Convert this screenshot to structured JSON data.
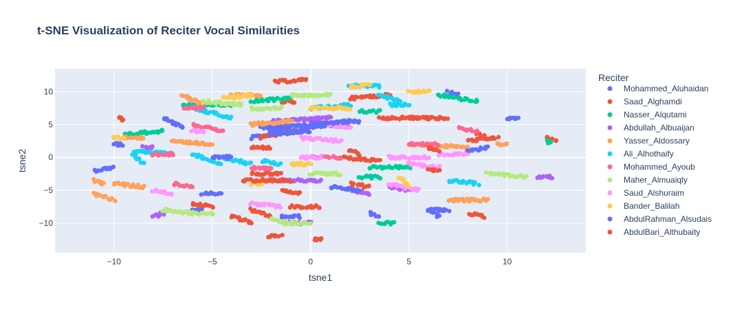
{
  "chart_data": {
    "type": "scatter",
    "title": "t-SNE Visualization of Reciter Vocal Similarities",
    "xlabel": "tsne1",
    "ylabel": "tsne2",
    "xlim": [
      -13,
      14
    ],
    "ylim": [
      -14.5,
      13.5
    ],
    "x_ticks": [
      -10,
      -5,
      0,
      5,
      10
    ],
    "y_ticks": [
      -10,
      -5,
      0,
      5,
      10
    ],
    "x_tick_labels": [
      "−10",
      "−5",
      "0",
      "5",
      "10"
    ],
    "y_tick_labels": [
      "−10",
      "−5",
      "0",
      "5",
      "10"
    ],
    "grid": true,
    "plot_background": "#E5ECF6",
    "legend": {
      "title": "Reciter",
      "placement": "right"
    },
    "series": [
      {
        "name": "Mohammed_Aluhaidan",
        "color": "#636EFA",
        "clusters": [
          [
            -11,
            -2,
            -10,
            -1.5
          ],
          [
            -7.5,
            6,
            -6.5,
            4.5
          ],
          [
            -3,
            3,
            1,
            5
          ],
          [
            -2.5,
            4.5,
            2.5,
            5.5
          ],
          [
            -1.5,
            -9,
            -0.5,
            -9
          ],
          [
            0,
            5.5,
            2,
            4.5
          ],
          [
            3,
            -8.5,
            3.5,
            -9
          ],
          [
            6,
            -8,
            6.5,
            -9
          ],
          [
            7,
            10,
            7.5,
            9.5
          ],
          [
            10,
            6,
            10.5,
            6
          ],
          [
            -6,
            -8,
            -5.5,
            -8
          ]
        ]
      },
      {
        "name": "Saad_Alghamdi",
        "color": "#EF553B",
        "clusters": [
          [
            -2.5,
            3,
            -1,
            4
          ],
          [
            -1.8,
            11.5,
            -0.2,
            11.8
          ],
          [
            -1.5,
            8.5,
            -0.8,
            8.5
          ],
          [
            2,
            9,
            4,
            9.5
          ],
          [
            3.5,
            6,
            6,
            6
          ],
          [
            -9.7,
            6,
            -9.6,
            5.6
          ],
          [
            -3,
            -2.5,
            -1.5,
            -2.5
          ],
          [
            -3,
            1.5,
            -2,
            1.5
          ],
          [
            8.5,
            3.5,
            9,
            3
          ],
          [
            8,
            2.5,
            9.5,
            3
          ],
          [
            -3,
            -8,
            -2,
            -9
          ],
          [
            1.5,
            0,
            3.5,
            -0.5
          ],
          [
            12,
            3,
            12.5,
            2.5
          ],
          [
            8,
            -8.5,
            8.8,
            -9
          ]
        ]
      },
      {
        "name": "Nasser_Alqutami",
        "color": "#00CC96",
        "clusters": [
          [
            -9.5,
            3.5,
            -7.5,
            4
          ],
          [
            -6.5,
            8,
            -4,
            8
          ],
          [
            2.5,
            7,
            3.5,
            7
          ],
          [
            3,
            -1.5,
            5,
            -1.5
          ],
          [
            6.5,
            9.5,
            8.5,
            8.5
          ],
          [
            12,
            2.5,
            12.2,
            2.2
          ],
          [
            2.5,
            -3,
            3.5,
            -3
          ],
          [
            3.5,
            -10,
            4.2,
            -10
          ],
          [
            -3,
            8.5,
            -1,
            9
          ]
        ]
      },
      {
        "name": "Abdullah_Albuaijan",
        "color": "#AB63FA",
        "clusters": [
          [
            -8,
            -9,
            -7.5,
            -8.5
          ],
          [
            -2,
            5.5,
            1,
            6
          ],
          [
            2,
            -5,
            3,
            -5.5
          ],
          [
            11.5,
            -3,
            12.3,
            -3
          ],
          [
            -1.5,
            -3.5,
            0.5,
            -3.5
          ],
          [
            -1,
            -10,
            0,
            -10
          ],
          [
            4,
            -4.5,
            5,
            -5
          ],
          [
            -8.5,
            1.5,
            -8,
            1.5
          ]
        ]
      },
      {
        "name": "Yasser_Aldossary",
        "color": "#FFA15A",
        "clusters": [
          [
            -11,
            -3.5,
            -10.5,
            -4
          ],
          [
            -10,
            -4,
            -8.5,
            -4.5
          ],
          [
            -11,
            -5.5,
            -10,
            -6.5
          ],
          [
            -6.5,
            9.5,
            -5.5,
            8
          ],
          [
            -3,
            5,
            -1,
            5.5
          ],
          [
            7,
            -6.5,
            9,
            -6.5
          ],
          [
            9.5,
            2,
            10,
            2
          ],
          [
            -7,
            2.5,
            -5,
            2
          ],
          [
            5,
            2,
            8,
            1.5
          ],
          [
            -4,
            9.5,
            -2.5,
            9.5
          ],
          [
            -9.5,
            3,
            -8.5,
            3
          ]
        ]
      },
      {
        "name": "Ali_Alhothaify",
        "color": "#19D3F3",
        "clusters": [
          [
            -9,
            1,
            -7,
            0.5
          ],
          [
            -6,
            7.5,
            -4,
            6
          ],
          [
            -6,
            0.5,
            -4.5,
            -1
          ],
          [
            -4.5,
            0,
            -3,
            -1
          ],
          [
            0,
            7.5,
            2,
            8
          ],
          [
            2,
            11,
            3.5,
            10.8
          ],
          [
            3.5,
            9.5,
            4.5,
            8.5
          ],
          [
            4,
            8,
            5,
            8
          ],
          [
            7,
            -3.5,
            8.5,
            -4
          ],
          [
            -9,
            0.5,
            -8.5,
            -1
          ],
          [
            -2.5,
            -0.5,
            -1.5,
            -1
          ]
        ]
      },
      {
        "name": "Mohammed_Ayoub",
        "color": "#FF6692",
        "clusters": [
          [
            -8,
            0.5,
            -7,
            0.5
          ],
          [
            -6,
            5,
            -4.5,
            4
          ],
          [
            -3,
            -1.5,
            -2,
            -1.8
          ],
          [
            0,
            0,
            1.5,
            0
          ],
          [
            5,
            2,
            6.5,
            2
          ],
          [
            7.5,
            4.5,
            8.5,
            4
          ],
          [
            -7,
            -4,
            -6,
            -4.5
          ],
          [
            -2.5,
            -3.5,
            -1.5,
            -3.5
          ],
          [
            -6.5,
            7.5,
            -5.5,
            7.5
          ]
        ]
      },
      {
        "name": "Maher_Almuaiqly",
        "color": "#B6E880",
        "clusters": [
          [
            -7.5,
            -8,
            -6,
            -8.5
          ],
          [
            -5.5,
            8.5,
            -3.5,
            8
          ],
          [
            -3,
            7.5,
            -1.5,
            7.5
          ],
          [
            -1.5,
            -10,
            0,
            -10
          ],
          [
            9,
            -2.5,
            11,
            -3
          ],
          [
            -1,
            9.5,
            1,
            9.5
          ],
          [
            0,
            -2.5,
            1.5,
            -2.5
          ],
          [
            -6,
            -8.5,
            -5,
            -8.5
          ],
          [
            -2,
            -9.5,
            -1,
            -10
          ]
        ]
      },
      {
        "name": "Saud_Alshuraim",
        "color": "#FF97FF",
        "clusters": [
          [
            -8,
            -5,
            -7,
            -5.5
          ],
          [
            -3,
            -7,
            -1.5,
            -7.5
          ],
          [
            -0.5,
            3,
            1.5,
            2.5
          ],
          [
            1,
            5,
            2,
            4.5
          ],
          [
            4,
            -4,
            5.5,
            -5
          ],
          [
            6.5,
            0.5,
            8,
            0.5
          ],
          [
            -0.5,
            0,
            0.5,
            0
          ],
          [
            4,
            0,
            6,
            0
          ],
          [
            -6,
            4,
            -5.5,
            4
          ],
          [
            5,
            -1,
            6.5,
            -1.5
          ]
        ]
      },
      {
        "name": "Bander_Balilah",
        "color": "#FECB52",
        "clusters": [
          [
            -10,
            3,
            -9.5,
            3
          ],
          [
            -4.5,
            9,
            -3,
            9.5
          ],
          [
            0,
            7.5,
            2,
            7.5
          ],
          [
            2,
            10.8,
            3,
            11
          ],
          [
            5,
            10,
            6,
            10
          ],
          [
            4.5,
            -3,
            5,
            -4.5
          ],
          [
            -1,
            -1,
            0,
            -1
          ],
          [
            -3,
            -4,
            -2.5,
            -4
          ]
        ]
      },
      {
        "name": "AbdulRahman_Alsudais",
        "color": "#636EFA",
        "clusters": [
          [
            -2,
            3.5,
            0,
            4
          ],
          [
            0,
            5,
            2,
            5.5
          ],
          [
            -10,
            2,
            -9.5,
            2
          ],
          [
            8,
            1,
            9,
            1.5
          ],
          [
            1,
            -4.5,
            2.5,
            -5
          ],
          [
            -5.5,
            -5.5,
            -4.5,
            -5.5
          ],
          [
            -2,
            4,
            -1,
            4.5
          ],
          [
            6,
            -8,
            7,
            -8
          ],
          [
            -5,
            0,
            -4,
            0
          ]
        ]
      },
      {
        "name": "AbdulBari_Althubaity",
        "color": "#EF553B",
        "clusters": [
          [
            -6,
            -7,
            -5,
            -7.5
          ],
          [
            -4,
            -9,
            -3,
            -10
          ],
          [
            -3.5,
            -3.5,
            -1,
            -3.5
          ],
          [
            -1.5,
            -5,
            -0.5,
            -5.5
          ],
          [
            -1,
            -7.5,
            0.5,
            -7.5
          ],
          [
            2,
            -4,
            3,
            -4.5
          ],
          [
            6,
            -2,
            6.5,
            -2
          ],
          [
            6,
            1.5,
            6.5,
            1
          ],
          [
            2,
            1,
            2.5,
            0.5
          ],
          [
            5,
            6,
            7,
            6
          ],
          [
            -2.2,
            -12,
            -1.5,
            -12
          ],
          [
            0.2,
            -12.5,
            0.5,
            -12.5
          ]
        ]
      }
    ]
  }
}
